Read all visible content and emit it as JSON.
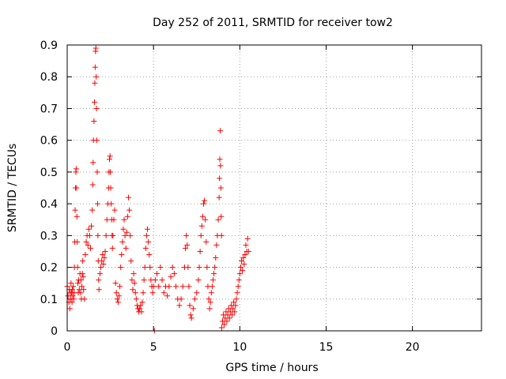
{
  "chart_data": {
    "type": "scatter",
    "title": "Day 252 of 2011, SRMTID for receiver tow2",
    "xlabel": "GPS time / hours",
    "ylabel": "SRMTID / TECUs",
    "xlim": [
      0,
      24
    ],
    "ylim": [
      0,
      0.9
    ],
    "xticks": [
      0,
      5,
      10,
      15,
      20
    ],
    "xtick_labels": [
      "0",
      "5",
      "10",
      "15",
      "20"
    ],
    "yticks": [
      0,
      0.1,
      0.2,
      0.3,
      0.4,
      0.5,
      0.6,
      0.7,
      0.8,
      0.9
    ],
    "ytick_labels": [
      "0",
      "0.1",
      "0.2",
      "0.3",
      "0.4",
      "0.5",
      "0.6",
      "0.7",
      "0.8",
      "0.9"
    ],
    "grid": true,
    "marker": "+",
    "color": "#ff0000",
    "series": [
      {
        "name": "tow2",
        "points": [
          [
            0.0,
            0.14
          ],
          [
            0.05,
            0.11
          ],
          [
            0.1,
            0.09
          ],
          [
            0.12,
            0.13
          ],
          [
            0.15,
            0.07
          ],
          [
            0.18,
            0.12
          ],
          [
            0.2,
            0.1
          ],
          [
            0.22,
            0.15
          ],
          [
            0.25,
            0.12
          ],
          [
            0.28,
            0.09
          ],
          [
            0.3,
            0.13
          ],
          [
            0.32,
            0.11
          ],
          [
            0.35,
            0.14
          ],
          [
            0.38,
            0.1
          ],
          [
            0.4,
            0.12
          ],
          [
            0.42,
            0.2
          ],
          [
            0.44,
            0.28
          ],
          [
            0.46,
            0.38
          ],
          [
            0.48,
            0.45
          ],
          [
            0.5,
            0.5
          ],
          [
            0.52,
            0.51
          ],
          [
            0.54,
            0.45
          ],
          [
            0.56,
            0.36
          ],
          [
            0.58,
            0.28
          ],
          [
            0.6,
            0.2
          ],
          [
            0.62,
            0.15
          ],
          [
            0.64,
            0.12
          ],
          [
            0.66,
            0.16
          ],
          [
            0.7,
            0.13
          ],
          [
            0.74,
            0.18
          ],
          [
            0.78,
            0.12
          ],
          [
            0.8,
            0.16
          ],
          [
            0.82,
            0.1
          ],
          [
            0.85,
            0.14
          ],
          [
            0.88,
            0.18
          ],
          [
            0.9,
            0.22
          ],
          [
            0.92,
            0.17
          ],
          [
            0.95,
            0.13
          ],
          [
            1.0,
            0.1
          ],
          [
            1.05,
            0.24
          ],
          [
            1.1,
            0.28
          ],
          [
            1.15,
            0.3
          ],
          [
            1.2,
            0.27
          ],
          [
            1.25,
            0.32
          ],
          [
            1.3,
            0.3
          ],
          [
            1.35,
            0.26
          ],
          [
            1.4,
            0.33
          ],
          [
            1.45,
            0.38
          ],
          [
            1.48,
            0.46
          ],
          [
            1.5,
            0.53
          ],
          [
            1.52,
            0.6
          ],
          [
            1.55,
            0.66
          ],
          [
            1.58,
            0.72
          ],
          [
            1.6,
            0.78
          ],
          [
            1.62,
            0.83
          ],
          [
            1.64,
            0.88
          ],
          [
            1.66,
            0.89
          ],
          [
            1.68,
            0.8
          ],
          [
            1.7,
            0.7
          ],
          [
            1.72,
            0.6
          ],
          [
            1.74,
            0.5
          ],
          [
            1.76,
            0.4
          ],
          [
            1.78,
            0.3
          ],
          [
            1.8,
            0.22
          ],
          [
            1.82,
            0.16
          ],
          [
            1.84,
            0.13
          ],
          [
            1.9,
            0.18
          ],
          [
            1.95,
            0.2
          ],
          [
            2.0,
            0.22
          ],
          [
            2.05,
            0.24
          ],
          [
            2.1,
            0.21
          ],
          [
            2.15,
            0.23
          ],
          [
            2.2,
            0.25
          ],
          [
            2.25,
            0.3
          ],
          [
            2.3,
            0.35
          ],
          [
            2.35,
            0.4
          ],
          [
            2.4,
            0.45
          ],
          [
            2.42,
            0.5
          ],
          [
            2.45,
            0.54
          ],
          [
            2.48,
            0.55
          ],
          [
            2.5,
            0.5
          ],
          [
            2.52,
            0.45
          ],
          [
            2.55,
            0.4
          ],
          [
            2.58,
            0.35
          ],
          [
            2.6,
            0.3
          ],
          [
            2.62,
            0.26
          ],
          [
            2.65,
            0.3
          ],
          [
            2.7,
            0.35
          ],
          [
            2.75,
            0.38
          ],
          [
            2.8,
            0.15
          ],
          [
            2.85,
            0.12
          ],
          [
            2.9,
            0.1
          ],
          [
            2.95,
            0.09
          ],
          [
            3.0,
            0.11
          ],
          [
            3.05,
            0.14
          ],
          [
            3.1,
            0.2
          ],
          [
            3.15,
            0.24
          ],
          [
            3.2,
            0.28
          ],
          [
            3.25,
            0.32
          ],
          [
            3.3,
            0.35
          ],
          [
            3.35,
            0.3
          ],
          [
            3.4,
            0.26
          ],
          [
            3.45,
            0.31
          ],
          [
            3.5,
            0.36
          ],
          [
            3.55,
            0.42
          ],
          [
            3.6,
            0.38
          ],
          [
            3.65,
            0.3
          ],
          [
            3.7,
            0.22
          ],
          [
            3.75,
            0.16
          ],
          [
            3.8,
            0.13
          ],
          [
            3.85,
            0.18
          ],
          [
            3.9,
            0.15
          ],
          [
            3.95,
            0.12
          ],
          [
            4.0,
            0.1
          ],
          [
            4.05,
            0.08
          ],
          [
            4.1,
            0.07
          ],
          [
            4.15,
            0.06
          ],
          [
            4.2,
            0.07
          ],
          [
            4.25,
            0.08
          ],
          [
            4.3,
            0.06
          ],
          [
            4.35,
            0.09
          ],
          [
            4.4,
            0.12
          ],
          [
            4.45,
            0.16
          ],
          [
            4.5,
            0.2
          ],
          [
            4.55,
            0.26
          ],
          [
            4.6,
            0.3
          ],
          [
            4.65,
            0.32
          ],
          [
            4.7,
            0.28
          ],
          [
            4.75,
            0.24
          ],
          [
            4.8,
            0.2
          ],
          [
            4.85,
            0.16
          ],
          [
            4.9,
            0.14
          ],
          [
            4.95,
            0.12
          ],
          [
            5.0,
            0.14
          ],
          [
            5.05,
            0.0
          ],
          [
            5.1,
            0.16
          ],
          [
            5.2,
            0.18
          ],
          [
            5.3,
            0.14
          ],
          [
            5.4,
            0.2
          ],
          [
            5.5,
            0.16
          ],
          [
            5.6,
            0.12
          ],
          [
            5.7,
            0.14
          ],
          [
            5.8,
            0.11
          ],
          [
            5.9,
            0.14
          ],
          [
            6.0,
            0.17
          ],
          [
            6.1,
            0.2
          ],
          [
            6.2,
            0.18
          ],
          [
            6.3,
            0.14
          ],
          [
            6.4,
            0.1
          ],
          [
            6.5,
            0.08
          ],
          [
            6.6,
            0.1
          ],
          [
            6.7,
            0.14
          ],
          [
            6.8,
            0.2
          ],
          [
            6.85,
            0.26
          ],
          [
            6.9,
            0.3
          ],
          [
            6.95,
            0.27
          ],
          [
            7.0,
            0.2
          ],
          [
            7.05,
            0.14
          ],
          [
            7.1,
            0.08
          ],
          [
            7.15,
            0.05
          ],
          [
            7.2,
            0.04
          ],
          [
            7.3,
            0.07
          ],
          [
            7.4,
            0.1
          ],
          [
            7.5,
            0.12
          ],
          [
            7.6,
            0.16
          ],
          [
            7.65,
            0.2
          ],
          [
            7.7,
            0.25
          ],
          [
            7.75,
            0.3
          ],
          [
            7.8,
            0.33
          ],
          [
            7.85,
            0.36
          ],
          [
            7.9,
            0.4
          ],
          [
            7.95,
            0.41
          ],
          [
            8.0,
            0.35
          ],
          [
            8.05,
            0.28
          ],
          [
            8.1,
            0.2
          ],
          [
            8.15,
            0.14
          ],
          [
            8.2,
            0.1
          ],
          [
            8.25,
            0.07
          ],
          [
            8.3,
            0.09
          ],
          [
            8.35,
            0.12
          ],
          [
            8.4,
            0.14
          ],
          [
            8.45,
            0.16
          ],
          [
            8.5,
            0.18
          ],
          [
            8.55,
            0.2
          ],
          [
            8.6,
            0.23
          ],
          [
            8.65,
            0.27
          ],
          [
            8.7,
            0.3
          ],
          [
            8.75,
            0.35
          ],
          [
            8.8,
            0.42
          ],
          [
            8.82,
            0.48
          ],
          [
            8.84,
            0.54
          ],
          [
            8.86,
            0.63
          ],
          [
            8.88,
            0.52
          ],
          [
            8.9,
            0.45
          ],
          [
            8.92,
            0.36
          ],
          [
            8.94,
            0.3
          ],
          [
            8.95,
            0.01
          ],
          [
            9.0,
            0.03
          ],
          [
            9.05,
            0.05
          ],
          [
            9.1,
            0.02
          ],
          [
            9.15,
            0.04
          ],
          [
            9.2,
            0.06
          ],
          [
            9.25,
            0.03
          ],
          [
            9.3,
            0.05
          ],
          [
            9.35,
            0.07
          ],
          [
            9.4,
            0.04
          ],
          [
            9.45,
            0.06
          ],
          [
            9.5,
            0.08
          ],
          [
            9.55,
            0.05
          ],
          [
            9.6,
            0.07
          ],
          [
            9.65,
            0.09
          ],
          [
            9.7,
            0.06
          ],
          [
            9.75,
            0.08
          ],
          [
            9.8,
            0.1
          ],
          [
            9.85,
            0.12
          ],
          [
            9.9,
            0.14
          ],
          [
            9.95,
            0.16
          ],
          [
            10.0,
            0.18
          ],
          [
            10.05,
            0.2
          ],
          [
            10.1,
            0.22
          ],
          [
            10.15,
            0.19
          ],
          [
            10.2,
            0.23
          ],
          [
            10.25,
            0.21
          ],
          [
            10.3,
            0.24
          ],
          [
            10.35,
            0.27
          ],
          [
            10.4,
            0.25
          ],
          [
            10.45,
            0.29
          ],
          [
            10.5,
            0.25
          ]
        ]
      }
    ]
  }
}
